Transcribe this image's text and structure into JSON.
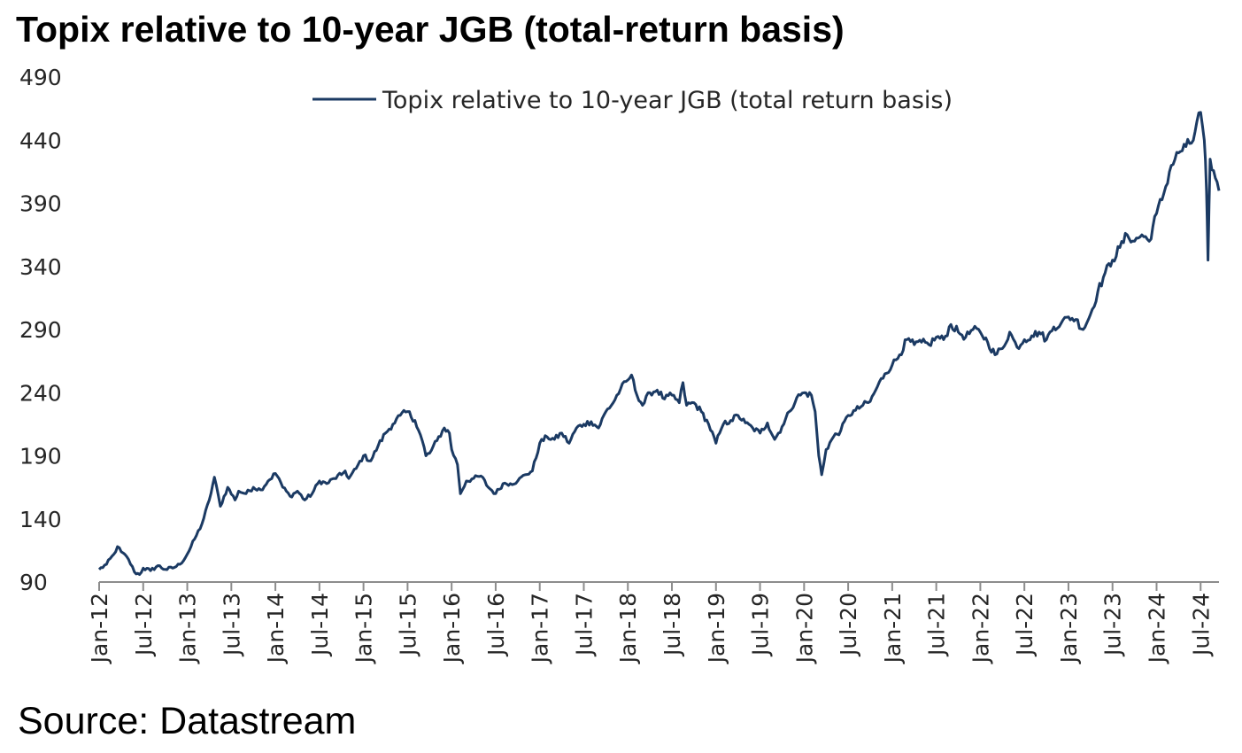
{
  "title": "Topix relative to 10-year JGB (total-return basis)",
  "source": "Source: Datastream",
  "colors": {
    "series": "#1b3a63",
    "axis": "#8c8c8c",
    "text": "#262626"
  },
  "chart_data": {
    "type": "line",
    "title": "Topix relative to 10-year JGB (total-return basis)",
    "xlabel": "",
    "ylabel": "",
    "grid": false,
    "legend_position": "top-center",
    "ylim": [
      90,
      490
    ],
    "yticks": [
      90,
      140,
      190,
      240,
      290,
      340,
      390,
      440,
      490
    ],
    "xlim": [
      0,
      152.5
    ],
    "xticks": [
      {
        "label": "Jan-12",
        "x": 0
      },
      {
        "label": "Jul-12",
        "x": 6
      },
      {
        "label": "Jan-13",
        "x": 12
      },
      {
        "label": "Jul-13",
        "x": 18
      },
      {
        "label": "Jan-14",
        "x": 24
      },
      {
        "label": "Jul-14",
        "x": 30
      },
      {
        "label": "Jan-15",
        "x": 36
      },
      {
        "label": "Jul-15",
        "x": 42
      },
      {
        "label": "Jan-16",
        "x": 48
      },
      {
        "label": "Jul-16",
        "x": 54
      },
      {
        "label": "Jan-17",
        "x": 60
      },
      {
        "label": "Jul-17",
        "x": 66
      },
      {
        "label": "Jan-18",
        "x": 72
      },
      {
        "label": "Jul-18",
        "x": 78
      },
      {
        "label": "Jan-19",
        "x": 84
      },
      {
        "label": "Jul-19",
        "x": 90
      },
      {
        "label": "Jan-20",
        "x": 96
      },
      {
        "label": "Jul-20",
        "x": 102
      },
      {
        "label": "Jan-21",
        "x": 108
      },
      {
        "label": "Jul-21",
        "x": 114
      },
      {
        "label": "Jan-22",
        "x": 120
      },
      {
        "label": "Jul-22",
        "x": 126
      },
      {
        "label": "Jan-23",
        "x": 132
      },
      {
        "label": "Jul-23",
        "x": 138
      },
      {
        "label": "Jan-24",
        "x": 144
      },
      {
        "label": "Jul-24",
        "x": 150
      }
    ],
    "series": [
      {
        "name": "Topix relative to 10-year JGB (total return basis)",
        "x_unit": "months since Jan-12",
        "points": [
          [
            0,
            100
          ],
          [
            1,
            104
          ],
          [
            2,
            112
          ],
          [
            2.5,
            118
          ],
          [
            3,
            114
          ],
          [
            4,
            108
          ],
          [
            4.8,
            98
          ],
          [
            5.5,
            96
          ],
          [
            6,
            101
          ],
          [
            7,
            99
          ],
          [
            8,
            103
          ],
          [
            9,
            100
          ],
          [
            10,
            101
          ],
          [
            11,
            104
          ],
          [
            12,
            112
          ],
          [
            13,
            124
          ],
          [
            14,
            136
          ],
          [
            15,
            155
          ],
          [
            15.7,
            173
          ],
          [
            16.5,
            150
          ],
          [
            17.5,
            165
          ],
          [
            18.5,
            155
          ],
          [
            19,
            162
          ],
          [
            20,
            160
          ],
          [
            21,
            165
          ],
          [
            22,
            163
          ],
          [
            23,
            170
          ],
          [
            24,
            176
          ],
          [
            24.5,
            172
          ],
          [
            25,
            165
          ],
          [
            26,
            158
          ],
          [
            27,
            162
          ],
          [
            28,
            155
          ],
          [
            29,
            160
          ],
          [
            30,
            170
          ],
          [
            31,
            168
          ],
          [
            32,
            172
          ],
          [
            33,
            175
          ],
          [
            33.5,
            178
          ],
          [
            34,
            172
          ],
          [
            35,
            180
          ],
          [
            36,
            190
          ],
          [
            37,
            186
          ],
          [
            38,
            198
          ],
          [
            39,
            208
          ],
          [
            40,
            215
          ],
          [
            41,
            222
          ],
          [
            42,
            225
          ],
          [
            43,
            218
          ],
          [
            44,
            202
          ],
          [
            44.5,
            190
          ],
          [
            45,
            192
          ],
          [
            46,
            202
          ],
          [
            47,
            212
          ],
          [
            47.7,
            208
          ],
          [
            48,
            195
          ],
          [
            48.8,
            183
          ],
          [
            49.2,
            160
          ],
          [
            50,
            170
          ],
          [
            51,
            172
          ],
          [
            52,
            174
          ],
          [
            53,
            165
          ],
          [
            54,
            160
          ],
          [
            55,
            168
          ],
          [
            56,
            168
          ],
          [
            57,
            170
          ],
          [
            58,
            175
          ],
          [
            59,
            178
          ],
          [
            60,
            200
          ],
          [
            61,
            205
          ],
          [
            62,
            203
          ],
          [
            63,
            208
          ],
          [
            64,
            200
          ],
          [
            65,
            212
          ],
          [
            66,
            215
          ],
          [
            67,
            217
          ],
          [
            68,
            212
          ],
          [
            69,
            225
          ],
          [
            70,
            232
          ],
          [
            71,
            243
          ],
          [
            72,
            250
          ],
          [
            72.5,
            254
          ],
          [
            73,
            242
          ],
          [
            74,
            230
          ],
          [
            75,
            240
          ],
          [
            76,
            242
          ],
          [
            77,
            235
          ],
          [
            78,
            238
          ],
          [
            79,
            232
          ],
          [
            79.5,
            248
          ],
          [
            80,
            230
          ],
          [
            81,
            232
          ],
          [
            82,
            225
          ],
          [
            83,
            215
          ],
          [
            84,
            200
          ],
          [
            84.5,
            208
          ],
          [
            85,
            215
          ],
          [
            86,
            218
          ],
          [
            87,
            222
          ],
          [
            88,
            216
          ],
          [
            89,
            212
          ],
          [
            90,
            208
          ],
          [
            91,
            216
          ],
          [
            92,
            203
          ],
          [
            93,
            213
          ],
          [
            94,
            225
          ],
          [
            95,
            236
          ],
          [
            96,
            240
          ],
          [
            97,
            238
          ],
          [
            97.5,
            225
          ],
          [
            98,
            190
          ],
          [
            98.4,
            175
          ],
          [
            99,
            195
          ],
          [
            100,
            205
          ],
          [
            101,
            210
          ],
          [
            102,
            222
          ],
          [
            103,
            226
          ],
          [
            104,
            230
          ],
          [
            105,
            233
          ],
          [
            106,
            245
          ],
          [
            107,
            255
          ],
          [
            108,
            262
          ],
          [
            109,
            270
          ],
          [
            110,
            282
          ],
          [
            111,
            278
          ],
          [
            112,
            280
          ],
          [
            113,
            278
          ],
          [
            114,
            284
          ],
          [
            115,
            282
          ],
          [
            116,
            294
          ],
          [
            117,
            288
          ],
          [
            118,
            284
          ],
          [
            119,
            290
          ],
          [
            120,
            288
          ],
          [
            121,
            280
          ],
          [
            122,
            270
          ],
          [
            123,
            275
          ],
          [
            124,
            288
          ],
          [
            125,
            276
          ],
          [
            126,
            282
          ],
          [
            127,
            285
          ],
          [
            128,
            288
          ],
          [
            129,
            282
          ],
          [
            130,
            292
          ],
          [
            131,
            295
          ],
          [
            132,
            300
          ],
          [
            133,
            298
          ],
          [
            134,
            290
          ],
          [
            135,
            302
          ],
          [
            136,
            320
          ],
          [
            137,
            335
          ],
          [
            138,
            345
          ],
          [
            139,
            355
          ],
          [
            140,
            365
          ],
          [
            141,
            360
          ],
          [
            142,
            365
          ],
          [
            143,
            360
          ],
          [
            144,
            382
          ],
          [
            145,
            398
          ],
          [
            146,
            420
          ],
          [
            147,
            430
          ],
          [
            148,
            435
          ],
          [
            149,
            440
          ],
          [
            149.5,
            455
          ],
          [
            150,
            462
          ],
          [
            150.5,
            440
          ],
          [
            150.8,
            400
          ],
          [
            151,
            345
          ],
          [
            151.3,
            425
          ],
          [
            152,
            410
          ],
          [
            152.5,
            400
          ]
        ]
      }
    ]
  }
}
